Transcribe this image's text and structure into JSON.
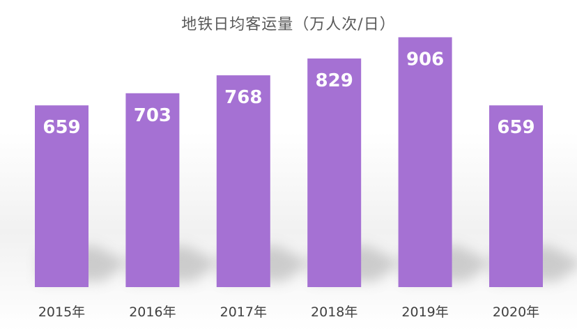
{
  "chart_data": {
    "type": "bar",
    "title": "地铁日均客运量（万人次/日）",
    "categories": [
      "2015年",
      "2016年",
      "2017年",
      "2018年",
      "2019年",
      "2020年"
    ],
    "values": [
      659,
      703,
      768,
      829,
      906,
      659
    ],
    "data_labels": [
      "659",
      "703",
      "768",
      "829",
      "906",
      "659"
    ],
    "ylim": [
      0,
      940
    ],
    "xlabel": "",
    "ylabel": "",
    "grid": false,
    "legend": "none",
    "bar_color": "#a571d3",
    "label_color": "#ffffff",
    "title_color": "#595959",
    "tick_color": "#404040"
  }
}
